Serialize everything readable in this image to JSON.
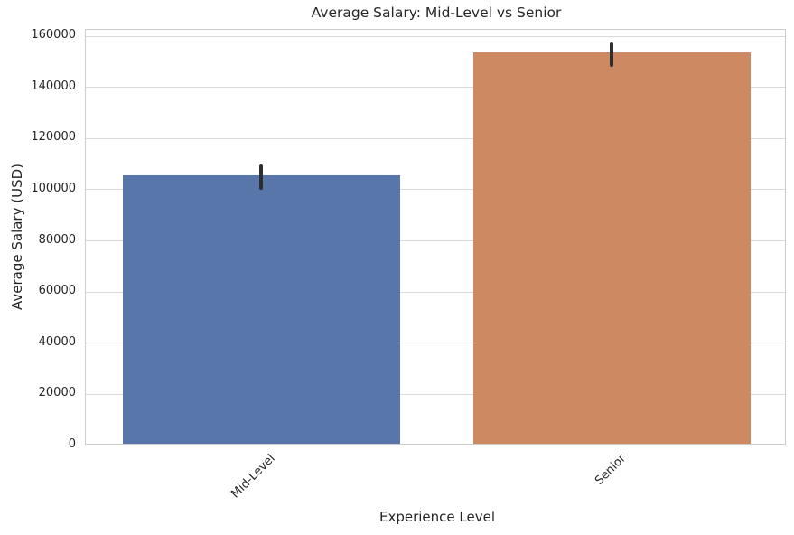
{
  "chart_data": {
    "type": "bar",
    "title": "Average Salary: Mid-Level vs Senior",
    "xlabel": "Experience Level",
    "ylabel": "Average Salary (USD)",
    "categories": [
      "Mid-Level",
      "Senior"
    ],
    "values": [
      104900,
      152800
    ],
    "error_bars": [
      {
        "low": 100100,
        "high": 109800
      },
      {
        "low": 148000,
        "high": 157500
      }
    ],
    "bar_colors": [
      "#5876A9",
      "#CD8A62"
    ],
    "errorbar_color": "#2e2e2e",
    "yticks": [
      0,
      20000,
      40000,
      60000,
      80000,
      100000,
      120000,
      140000,
      160000
    ],
    "ylim": [
      0,
      162500
    ],
    "xtick_rotation_deg": 45,
    "grid": "horizontal",
    "grid_color": "#d9d9d9",
    "spine_color": "#cccccc",
    "background_color": "#ffffff",
    "text_color": "#262626",
    "legend": "none"
  }
}
